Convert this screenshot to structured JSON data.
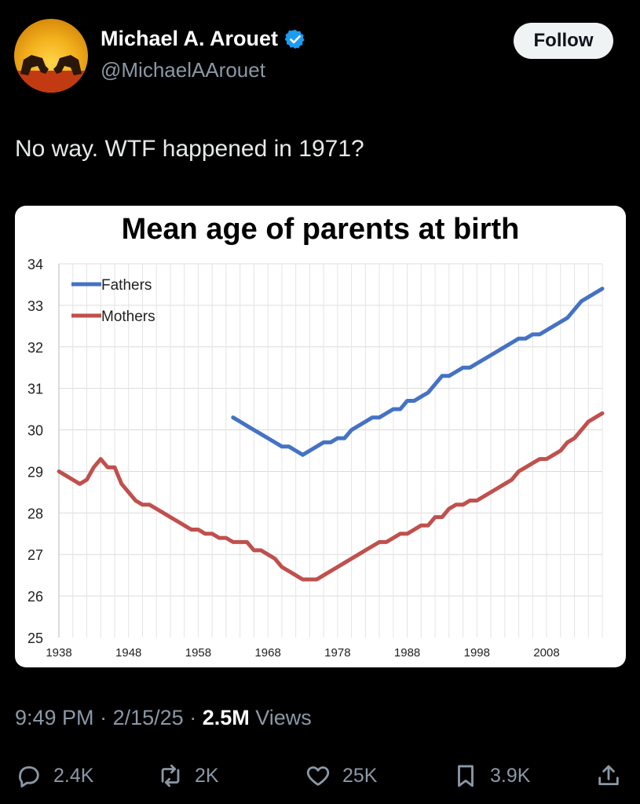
{
  "author": {
    "name": "Michael A. Arouet",
    "handle": "@MichaelAArouet",
    "verified": true,
    "verified_color": "#1d9bf0"
  },
  "follow_label": "Follow",
  "tweet": {
    "text": "No way. WTF happened in 1971?"
  },
  "meta": {
    "time": "9:49 PM",
    "date": "2/15/25",
    "separator": "·",
    "views_count": "2.5M",
    "views_label": "Views"
  },
  "actions": {
    "replies": "2.4K",
    "reposts": "2K",
    "likes": "25K",
    "bookmarks": "3.9K"
  },
  "chart_data": {
    "type": "line",
    "title": "Mean age of parents at birth",
    "xlim": [
      1938,
      2016
    ],
    "ylim": [
      25,
      34
    ],
    "x_ticks": [
      "1938",
      "1948",
      "1958",
      "1968",
      "1978",
      "1988",
      "1998",
      "2008"
    ],
    "y_ticks": [
      "25",
      "26",
      "27",
      "28",
      "29",
      "30",
      "31",
      "32",
      "33",
      "34"
    ],
    "grid": true,
    "legend_position": "top-left",
    "series": [
      {
        "name": "Fathers",
        "color": "#4472c4",
        "x": [
          1963,
          1964,
          1965,
          1966,
          1967,
          1968,
          1969,
          1970,
          1971,
          1972,
          1973,
          1974,
          1975,
          1976,
          1977,
          1978,
          1979,
          1980,
          1981,
          1982,
          1983,
          1984,
          1985,
          1986,
          1987,
          1988,
          1989,
          1990,
          1991,
          1992,
          1993,
          1994,
          1995,
          1996,
          1997,
          1998,
          1999,
          2000,
          2001,
          2002,
          2003,
          2004,
          2005,
          2006,
          2007,
          2008,
          2009,
          2010,
          2011,
          2012,
          2013,
          2014,
          2015,
          2016
        ],
        "y": [
          30.3,
          30.2,
          30.1,
          30.0,
          29.9,
          29.8,
          29.7,
          29.6,
          29.6,
          29.5,
          29.4,
          29.5,
          29.6,
          29.7,
          29.7,
          29.8,
          29.8,
          30.0,
          30.1,
          30.2,
          30.3,
          30.3,
          30.4,
          30.5,
          30.5,
          30.7,
          30.7,
          30.8,
          30.9,
          31.1,
          31.3,
          31.3,
          31.4,
          31.5,
          31.5,
          31.6,
          31.7,
          31.8,
          31.9,
          32.0,
          32.1,
          32.2,
          32.2,
          32.3,
          32.3,
          32.4,
          32.5,
          32.6,
          32.7,
          32.9,
          33.1,
          33.2,
          33.3,
          33.4
        ]
      },
      {
        "name": "Mothers",
        "color": "#c0504d",
        "x": [
          1938,
          1939,
          1940,
          1941,
          1942,
          1943,
          1944,
          1945,
          1946,
          1947,
          1948,
          1949,
          1950,
          1951,
          1952,
          1953,
          1954,
          1955,
          1956,
          1957,
          1958,
          1959,
          1960,
          1961,
          1962,
          1963,
          1964,
          1965,
          1966,
          1967,
          1968,
          1969,
          1970,
          1971,
          1972,
          1973,
          1974,
          1975,
          1976,
          1977,
          1978,
          1979,
          1980,
          1981,
          1982,
          1983,
          1984,
          1985,
          1986,
          1987,
          1988,
          1989,
          1990,
          1991,
          1992,
          1993,
          1994,
          1995,
          1996,
          1997,
          1998,
          1999,
          2000,
          2001,
          2002,
          2003,
          2004,
          2005,
          2006,
          2007,
          2008,
          2009,
          2010,
          2011,
          2012,
          2013,
          2014,
          2015,
          2016
        ],
        "y": [
          29.0,
          28.9,
          28.8,
          28.7,
          28.8,
          29.1,
          29.3,
          29.1,
          29.1,
          28.7,
          28.5,
          28.3,
          28.2,
          28.2,
          28.1,
          28.0,
          27.9,
          27.8,
          27.7,
          27.6,
          27.6,
          27.5,
          27.5,
          27.4,
          27.4,
          27.3,
          27.3,
          27.3,
          27.1,
          27.1,
          27.0,
          26.9,
          26.7,
          26.6,
          26.5,
          26.4,
          26.4,
          26.4,
          26.5,
          26.6,
          26.7,
          26.8,
          26.9,
          27.0,
          27.1,
          27.2,
          27.3,
          27.3,
          27.4,
          27.5,
          27.5,
          27.6,
          27.7,
          27.7,
          27.9,
          27.9,
          28.1,
          28.2,
          28.2,
          28.3,
          28.3,
          28.4,
          28.5,
          28.6,
          28.7,
          28.8,
          29.0,
          29.1,
          29.2,
          29.3,
          29.3,
          29.4,
          29.5,
          29.7,
          29.8,
          30.0,
          30.2,
          30.3,
          30.4
        ]
      }
    ]
  }
}
